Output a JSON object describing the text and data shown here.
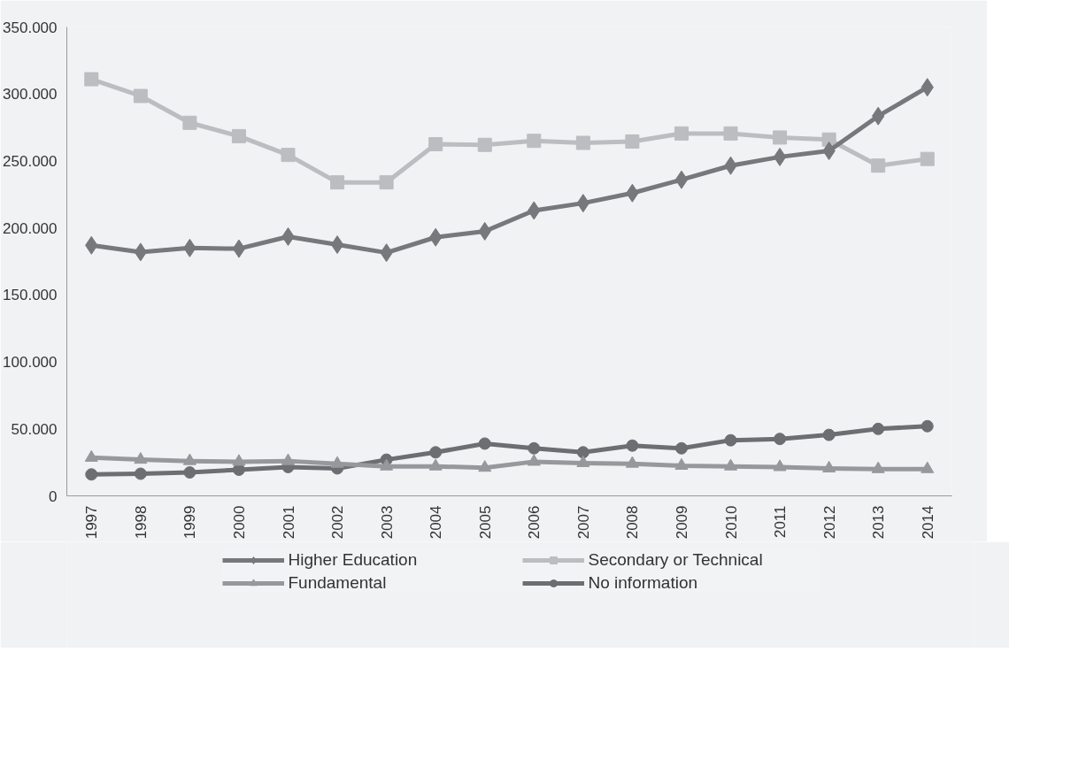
{
  "chart_data": {
    "type": "line",
    "categories": [
      "1997",
      "1998",
      "1999",
      "2000",
      "2001",
      "2002",
      "2003",
      "2004",
      "2005",
      "2006",
      "2007",
      "2008",
      "2009",
      "2010",
      "2011",
      "2012",
      "2013",
      "2014"
    ],
    "series": [
      {
        "name": "Higher Education",
        "color": "#77787b",
        "marker": "diamond",
        "values": [
          187000,
          182000,
          185000,
          184500,
          193500,
          187500,
          181500,
          193000,
          197500,
          213000,
          218500,
          226000,
          236000,
          246500,
          253000,
          257500,
          283500,
          305000
        ]
      },
      {
        "name": "Secondary or Technical",
        "color": "#bcbdc0",
        "marker": "square",
        "values": [
          311000,
          298500,
          278500,
          268500,
          254500,
          234000,
          234000,
          262500,
          262000,
          265000,
          263500,
          264500,
          270500,
          270500,
          267500,
          266000,
          246500,
          251500
        ]
      },
      {
        "name": "Fundamental",
        "color": "#97989b",
        "marker": "triangle",
        "values": [
          28500,
          27000,
          26000,
          25500,
          26000,
          24000,
          22000,
          22000,
          21000,
          25500,
          24500,
          24000,
          22500,
          22000,
          21500,
          20500,
          20000,
          20000
        ]
      },
      {
        "name": "No information",
        "color": "#6d6e71",
        "marker": "circle",
        "values": [
          16000,
          16500,
          17500,
          19500,
          21500,
          20500,
          27000,
          32500,
          39000,
          35500,
          32500,
          37500,
          35500,
          41500,
          42500,
          45500,
          50000,
          52000
        ]
      }
    ],
    "ylim": [
      0,
      350000
    ],
    "yticks": [
      0,
      {
        "value": 50000,
        "label": "50.000"
      },
      {
        "value": 100000,
        "label": "100.000"
      },
      {
        "value": 150000,
        "label": "150.000"
      },
      {
        "value": 200000,
        "label": "200.000"
      },
      {
        "value": 250000,
        "label": "250.000"
      },
      {
        "value": 300000,
        "label": "300.000"
      },
      {
        "value": 350000,
        "label": "350.000"
      }
    ],
    "grid": false,
    "legend": "bottom",
    "line_style": "solid"
  }
}
